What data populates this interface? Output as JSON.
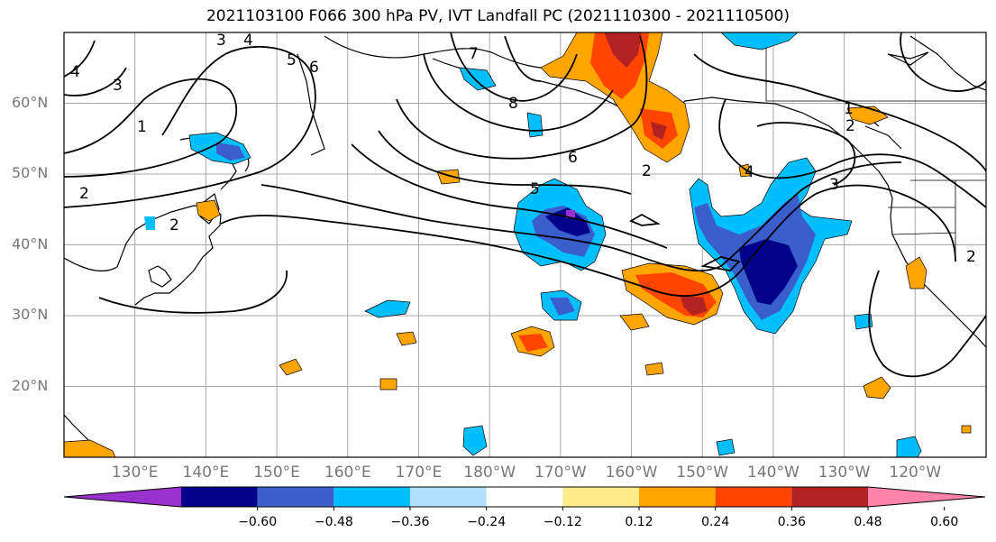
{
  "title": "2021103100 F066 300 hPa PV, IVT Landfall PC (2021110300 - 2021110500)",
  "lat_labels": [
    "60°N",
    "50°N",
    "40°N",
    "30°N",
    "20°N"
  ],
  "lon_labels": [
    "130°E",
    "140°E",
    "150°E",
    "160°E",
    "170°E",
    "180°W",
    "170°W",
    "160°W",
    "150°W",
    "140°W",
    "130°W",
    "120°W"
  ],
  "colorbar": {
    "colors": [
      "#9932cc",
      "#00008b",
      "#3a5fcd",
      "#00bfff",
      "#b0e2ff",
      "#ffffff",
      "#ffec8b",
      "#ffa500",
      "#ff4500",
      "#b22222",
      "#ff82ab"
    ],
    "tick_labels": [
      "−0.60",
      "−0.48",
      "−0.36",
      "−0.24",
      "−0.12",
      "0.12",
      "0.24",
      "0.36",
      "0.48",
      "0.60"
    ]
  },
  "contour_labels": [
    "1",
    "2",
    "3",
    "4",
    "5",
    "6",
    "7",
    "8"
  ],
  "map_extent": {
    "lon_min": 120,
    "lon_max": 250,
    "lat_min": 10,
    "lat_max": 70
  }
}
